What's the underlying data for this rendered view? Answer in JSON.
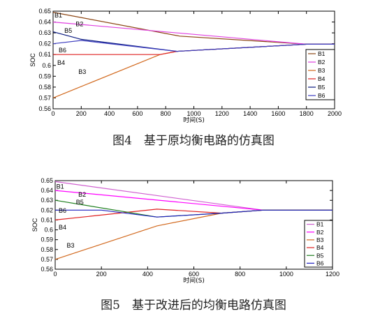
{
  "chart_data": [
    {
      "type": "line",
      "caption": "图4　基于原均衡电路的仿真图",
      "xlabel": "时间(S)",
      "ylabel": "SOC",
      "xlim": [
        0,
        2000
      ],
      "ylim": [
        0.56,
        0.65
      ],
      "x_ticks": [
        0,
        200,
        400,
        600,
        800,
        1000,
        1200,
        1400,
        1600,
        1800,
        2000
      ],
      "y_ticks": [
        0.56,
        0.57,
        0.58,
        0.59,
        0.6,
        0.61,
        0.62,
        0.63,
        0.64,
        0.65
      ],
      "legend_position": "right",
      "series": [
        {
          "name": "B1",
          "color": "#8b4513",
          "points": [
            [
              0,
              0.649
            ],
            [
              900,
              0.627
            ],
            [
              1800,
              0.6195
            ],
            [
              2000,
              0.6195
            ]
          ]
        },
        {
          "name": "B2",
          "color": "#e040e0",
          "points": [
            [
              0,
              0.64
            ],
            [
              1800,
              0.6195
            ],
            [
              2000,
              0.6195
            ]
          ]
        },
        {
          "name": "B3",
          "color": "#d2691e",
          "points": [
            [
              0,
              0.57
            ],
            [
              760,
              0.61
            ],
            [
              880,
              0.613
            ],
            [
              1800,
              0.6195
            ],
            [
              2000,
              0.6195
            ]
          ]
        },
        {
          "name": "B4",
          "color": "#e02020",
          "points": [
            [
              0,
              0.61
            ],
            [
              760,
              0.61
            ],
            [
              880,
              0.613
            ],
            [
              1800,
              0.6195
            ],
            [
              2000,
              0.6195
            ]
          ]
        },
        {
          "name": "B5",
          "color": "#0a1a80",
          "points": [
            [
              0,
              0.631
            ],
            [
              200,
              0.624
            ],
            [
              880,
              0.613
            ],
            [
              1800,
              0.6195
            ],
            [
              2000,
              0.6195
            ]
          ]
        },
        {
          "name": "B6",
          "color": "#4040c0",
          "points": [
            [
              0,
              0.62
            ],
            [
              200,
              0.623
            ],
            [
              880,
              0.613
            ],
            [
              1800,
              0.6195
            ],
            [
              2000,
              0.6195
            ]
          ]
        }
      ],
      "annotations": [
        {
          "text": "B1",
          "x": 10,
          "y": 0.646
        },
        {
          "text": "B2",
          "x": 160,
          "y": 0.638
        },
        {
          "text": "B5",
          "x": 80,
          "y": 0.632
        },
        {
          "text": "B6",
          "x": 40,
          "y": 0.614
        },
        {
          "text": "B4",
          "x": 30,
          "y": 0.6025
        },
        {
          "text": "B3",
          "x": 180,
          "y": 0.594
        }
      ]
    },
    {
      "type": "line",
      "caption": "图5　基于改进后的均衡电路仿真图",
      "xlabel": "时间(S)",
      "ylabel": "SOC",
      "xlim": [
        0,
        1200
      ],
      "ylim": [
        0.56,
        0.65
      ],
      "x_ticks": [
        0,
        200,
        400,
        600,
        800,
        1000,
        1200
      ],
      "y_ticks": [
        0.56,
        0.57,
        0.58,
        0.59,
        0.6,
        0.61,
        0.62,
        0.63,
        0.64,
        0.65
      ],
      "legend_position": "right",
      "series": [
        {
          "name": "B1",
          "color": "#d060d0",
          "points": [
            [
              0,
              0.649
            ],
            [
              900,
              0.62
            ],
            [
              1200,
              0.62
            ]
          ]
        },
        {
          "name": "B2",
          "color": "#ff00ff",
          "points": [
            [
              0,
              0.64
            ],
            [
              900,
              0.62
            ],
            [
              1200,
              0.62
            ]
          ]
        },
        {
          "name": "B3",
          "color": "#d2691e",
          "points": [
            [
              0,
              0.57
            ],
            [
              440,
              0.604
            ],
            [
              720,
              0.617
            ],
            [
              900,
              0.62
            ],
            [
              1200,
              0.62
            ]
          ]
        },
        {
          "name": "B4",
          "color": "#e02020",
          "points": [
            [
              0,
              0.61
            ],
            [
              440,
              0.621
            ],
            [
              720,
              0.617
            ],
            [
              900,
              0.62
            ],
            [
              1200,
              0.62
            ]
          ]
        },
        {
          "name": "B5",
          "color": "#208020",
          "points": [
            [
              0,
              0.63
            ],
            [
              440,
              0.613
            ],
            [
              720,
              0.617
            ],
            [
              900,
              0.62
            ],
            [
              1200,
              0.62
            ]
          ]
        },
        {
          "name": "B6",
          "color": "#2020c0",
          "points": [
            [
              0,
              0.62
            ],
            [
              200,
              0.62
            ],
            [
              440,
              0.613
            ],
            [
              720,
              0.617
            ],
            [
              900,
              0.62
            ],
            [
              1200,
              0.62
            ]
          ]
        }
      ],
      "annotations": [
        {
          "text": "B1",
          "x": 5,
          "y": 0.644
        },
        {
          "text": "B2",
          "x": 100,
          "y": 0.636
        },
        {
          "text": "B5",
          "x": 90,
          "y": 0.628
        },
        {
          "text": "B6",
          "x": 15,
          "y": 0.6195
        },
        {
          "text": "B4",
          "x": 15,
          "y": 0.6025
        },
        {
          "text": "B3",
          "x": 50,
          "y": 0.584
        }
      ]
    }
  ]
}
